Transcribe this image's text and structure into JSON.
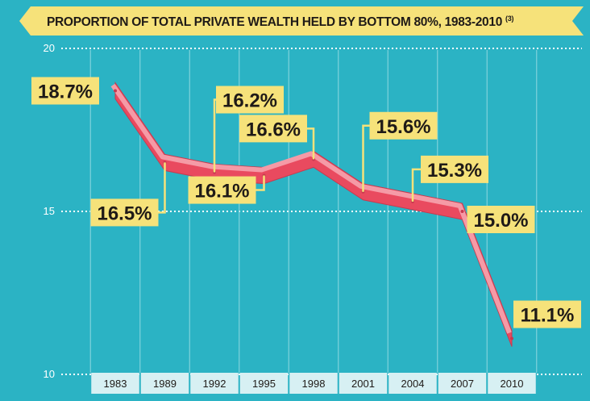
{
  "title": "PROPORTION OF TOTAL PRIVATE WEALTH HELD BY BOTTOM 80%, 1983-2010",
  "title_footnote": "(3)",
  "colors": {
    "background": "#2bb3c4",
    "banner": "#f6e27a",
    "line": "#e94a5f",
    "line_highlight": "#f59aa6",
    "label_bg": "#f6e27a",
    "label_text": "#1f1a17",
    "axis_strip": "#d7f0f3"
  },
  "chart_data": {
    "type": "line",
    "title": "PROPORTION OF TOTAL PRIVATE WEALTH HELD BY BOTTOM 80%, 1983-2010",
    "xlabel": "",
    "ylabel": "",
    "ylim": [
      10,
      20
    ],
    "yticks": [
      "10",
      "15",
      "20"
    ],
    "grid": true,
    "categories": [
      "1983",
      "1989",
      "1992",
      "1995",
      "1998",
      "2001",
      "2004",
      "2007",
      "2010"
    ],
    "series": [
      {
        "values": [
          18.7,
          16.5,
          16.2,
          16.1,
          16.6,
          15.6,
          15.3,
          15.0,
          11.1
        ],
        "labels": [
          "18.7%",
          "16.5%",
          "16.2%",
          "16.1%",
          "16.6%",
          "15.6%",
          "15.3%",
          "15.0%",
          "11.1%"
        ]
      }
    ]
  }
}
